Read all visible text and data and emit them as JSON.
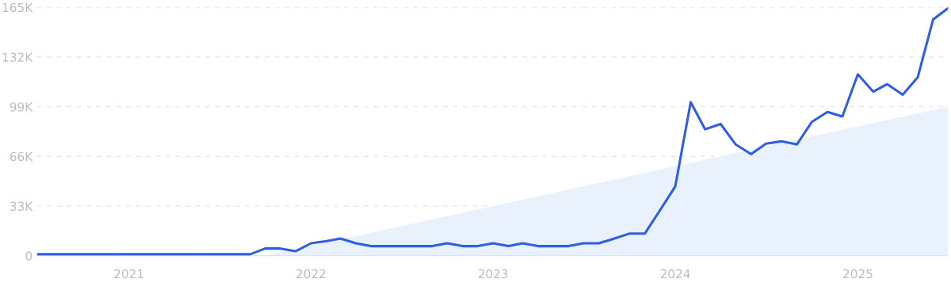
{
  "chart_data": {
    "type": "line",
    "xlim": [
      "2020-07",
      "2025-07"
    ],
    "xticks": [
      {
        "value": "2021-01",
        "label": "2021"
      },
      {
        "value": "2022-01",
        "label": "2022"
      },
      {
        "value": "2023-01",
        "label": "2023"
      },
      {
        "value": "2024-01",
        "label": "2024"
      },
      {
        "value": "2025-01",
        "label": "2025"
      }
    ],
    "ylim": [
      0,
      165000
    ],
    "yticks": [
      {
        "value": 0,
        "label": "0"
      },
      {
        "value": 33000,
        "label": "33K"
      },
      {
        "value": 66000,
        "label": "66K"
      },
      {
        "value": 99000,
        "label": "99K"
      },
      {
        "value": 132000,
        "label": "132K"
      },
      {
        "value": 165000,
        "label": "165K"
      }
    ],
    "grid": "y",
    "series": [
      {
        "type": "area",
        "color": "#e8f1fc",
        "x": [
          "2021-10",
          "2025-07"
        ],
        "values": [
          0,
          99000
        ]
      },
      {
        "color": "#2f5ee3",
        "x": [
          "2020-07",
          "2020-08",
          "2020-09",
          "2020-10",
          "2020-11",
          "2020-12",
          "2021-01",
          "2021-02",
          "2021-03",
          "2021-04",
          "2021-05",
          "2021-06",
          "2021-07",
          "2021-08",
          "2021-09",
          "2021-10",
          "2021-11",
          "2021-12",
          "2022-01",
          "2022-02",
          "2022-03",
          "2022-04",
          "2022-05",
          "2022-06",
          "2022-07",
          "2022-08",
          "2022-09",
          "2022-10",
          "2022-11",
          "2022-12",
          "2023-01",
          "2023-02",
          "2023-03",
          "2023-04",
          "2023-05",
          "2023-06",
          "2023-07",
          "2023-08",
          "2023-09",
          "2023-10",
          "2023-11",
          "2023-12",
          "2024-01",
          "2024-02",
          "2024-03",
          "2024-04",
          "2024-05",
          "2024-06",
          "2024-07",
          "2024-08",
          "2024-09",
          "2024-10",
          "2024-11",
          "2024-12",
          "2025-01",
          "2025-02",
          "2025-03",
          "2025-04",
          "2025-05",
          "2025-06",
          "2025-07"
        ],
        "values": [
          1000,
          1000,
          1000,
          1000,
          1000,
          1000,
          1000,
          1000,
          1000,
          1000,
          1000,
          1000,
          1000,
          1000,
          1000,
          4800,
          4800,
          3000,
          8300,
          9700,
          11500,
          8300,
          6400,
          6400,
          6400,
          6400,
          6400,
          8300,
          6400,
          6400,
          8300,
          6400,
          8300,
          6400,
          6400,
          6400,
          8300,
          8300,
          11500,
          14700,
          14700,
          30000,
          46000,
          102000,
          84000,
          87500,
          74000,
          67500,
          74500,
          76000,
          74000,
          89000,
          95500,
          92500,
          120500,
          109000,
          114000,
          107000,
          118500,
          157000,
          164500
        ]
      }
    ]
  }
}
